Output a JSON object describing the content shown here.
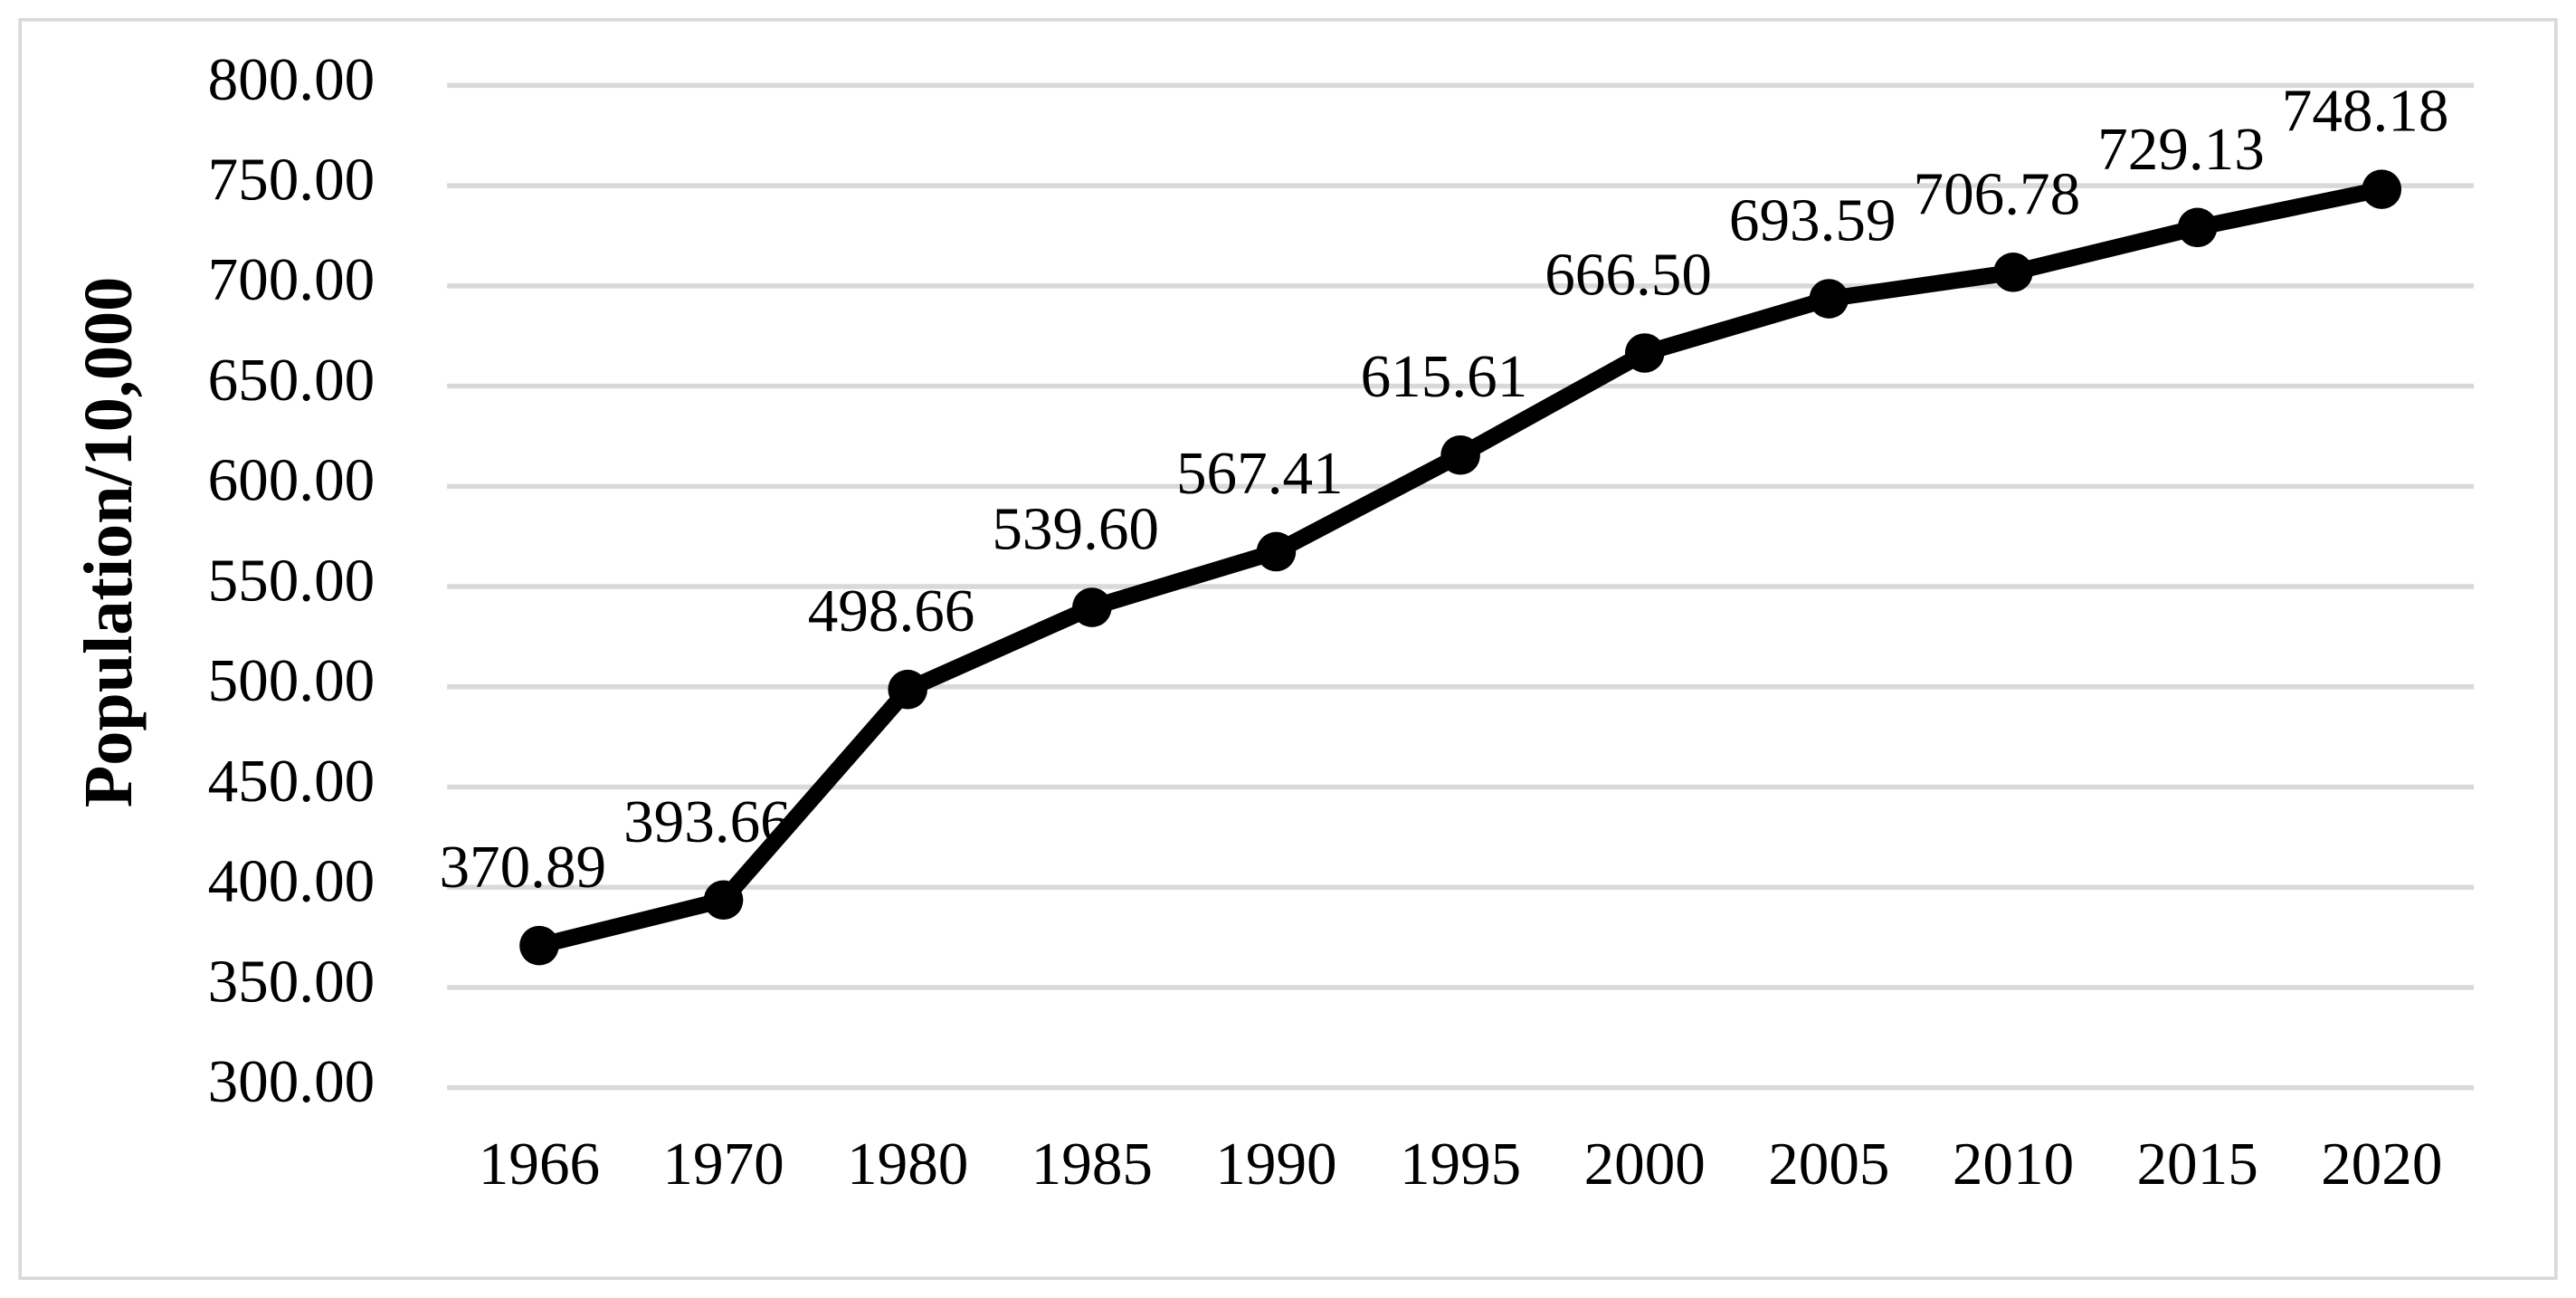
{
  "chart_data": {
    "type": "line",
    "y_label": "Population/10,000",
    "categories": [
      "1966",
      "1970",
      "1980",
      "1985",
      "1990",
      "1995",
      "2000",
      "2005",
      "2010",
      "2015",
      "2020"
    ],
    "values": [
      370.89,
      393.66,
      498.66,
      539.6,
      567.41,
      615.61,
      666.5,
      693.59,
      706.78,
      729.13,
      748.18
    ],
    "value_labels": [
      "370.89",
      "393.66",
      "498.66",
      "539.60",
      "567.41",
      "615.61",
      "666.50",
      "693.59",
      "706.78",
      "729.13",
      "748.18"
    ],
    "color": "#000000",
    "ylim": [
      300,
      800
    ],
    "yticks": [
      {
        "value": 300,
        "label": "300.00"
      },
      {
        "value": 350,
        "label": "350.00"
      },
      {
        "value": 400,
        "label": "400.00"
      },
      {
        "value": 450,
        "label": "450.00"
      },
      {
        "value": 500,
        "label": "500.00"
      },
      {
        "value": 550,
        "label": "550.00"
      },
      {
        "value": 600,
        "label": "600.00"
      },
      {
        "value": 650,
        "label": "650.00"
      },
      {
        "value": 700,
        "label": "700.00"
      },
      {
        "value": 750,
        "label": "750.00"
      },
      {
        "value": 800,
        "label": "800.00"
      }
    ],
    "grid": true
  }
}
